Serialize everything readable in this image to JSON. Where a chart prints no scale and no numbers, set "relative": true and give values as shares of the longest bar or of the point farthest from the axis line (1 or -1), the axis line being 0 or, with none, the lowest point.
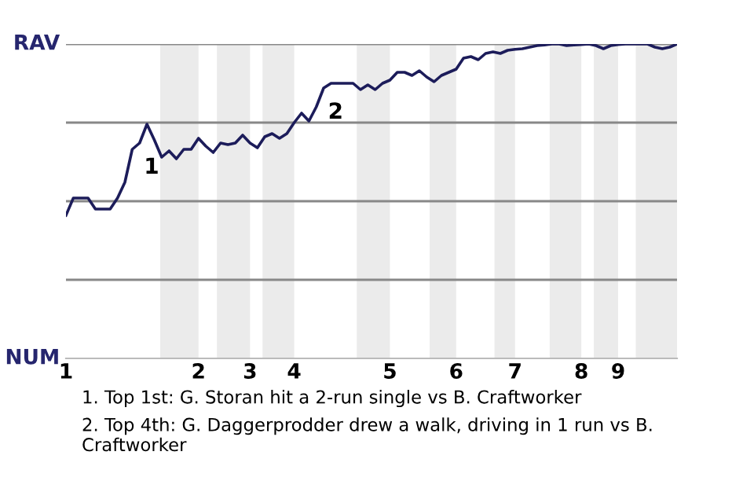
{
  "chart_data": {
    "type": "line",
    "relative": true,
    "categories": [
      "1",
      null,
      null,
      null,
      null,
      null,
      null,
      null,
      null,
      null,
      null,
      null,
      null,
      null,
      null,
      null,
      null,
      null,
      "2",
      null,
      null,
      null,
      null,
      null,
      null,
      "3",
      null,
      null,
      null,
      null,
      null,
      "4",
      null,
      null,
      null,
      null,
      null,
      null,
      null,
      null,
      null,
      null,
      null,
      null,
      "5",
      null,
      null,
      null,
      null,
      null,
      null,
      null,
      null,
      "6",
      null,
      null,
      null,
      null,
      null,
      null,
      null,
      "7",
      null,
      null,
      null,
      null,
      null,
      null,
      null,
      null,
      "8",
      null,
      null,
      null,
      null,
      "9",
      null,
      null,
      null,
      null,
      null,
      null,
      null,
      null
    ],
    "series": [
      {
        "color": "#1c1c5a",
        "values": [
          0.455,
          0.51,
          0.51,
          0.51,
          0.475,
          0.475,
          0.475,
          0.51,
          0.56,
          0.665,
          0.685,
          0.745,
          0.695,
          0.64,
          0.66,
          0.635,
          0.665,
          0.665,
          0.7,
          0.675,
          0.655,
          0.685,
          0.68,
          0.685,
          0.71,
          0.685,
          0.67,
          0.705,
          0.715,
          0.7,
          0.715,
          0.75,
          0.78,
          0.755,
          0.8,
          0.86,
          0.875,
          0.875,
          0.875,
          0.875,
          0.855,
          0.87,
          0.855,
          0.875,
          0.885,
          0.91,
          0.91,
          0.9,
          0.915,
          0.895,
          0.88,
          0.9,
          0.91,
          0.92,
          0.955,
          0.96,
          0.95,
          0.97,
          0.975,
          0.97,
          0.98,
          0.983,
          0.985,
          0.99,
          0.995,
          0.997,
          1.0,
          1.0,
          0.995,
          0.997,
          0.998,
          1.0,
          0.995,
          0.985,
          0.995,
          0.998,
          1.0,
          1.0,
          1.0,
          1.0,
          0.99,
          0.985,
          0.99,
          1.0
        ]
      }
    ],
    "grid": "y",
    "annotations": [
      "RAV",
      "NUM",
      {
        "text": "1",
        "y": 0.685
      },
      {
        "text": "2",
        "y": 0.86
      },
      "1. Top 1st: G. Storan hit a 2-run single vs B. Craftworker",
      "2. Top 4th: G. Daggerprodder drew a walk, driving in 1 run vs B. Craftworker"
    ]
  }
}
